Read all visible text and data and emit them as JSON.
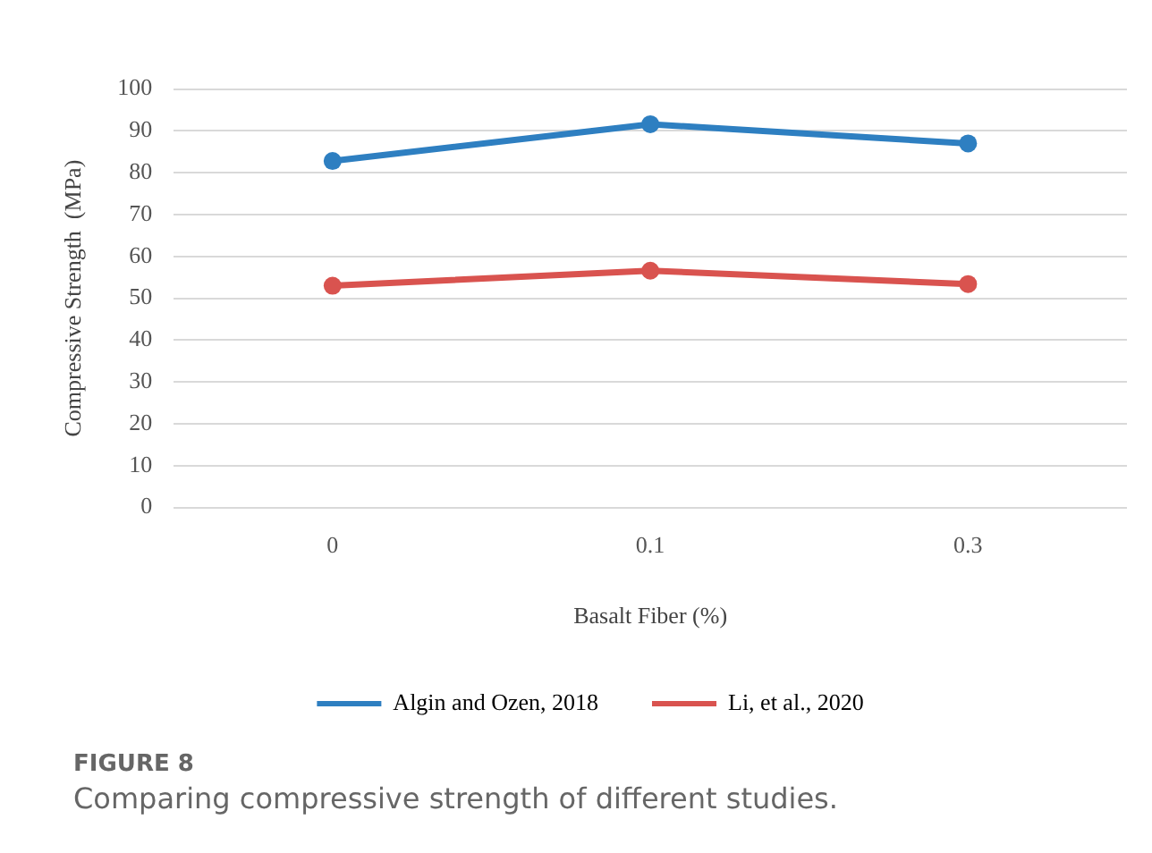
{
  "chart_data": {
    "type": "line",
    "xlabel": "Basalt Fiber (%)",
    "ylabel": "Compressive Strength  (MPa)",
    "categories": [
      "0",
      "0.1",
      "0.3"
    ],
    "series": [
      {
        "name": "Algin and Ozen, 2018",
        "color": "#2e7fc1",
        "values": [
          82.8,
          91.6,
          87.0
        ]
      },
      {
        "name": "Li, et al., 2020",
        "color": "#d9534f",
        "values": [
          53.0,
          56.6,
          53.4
        ]
      }
    ],
    "ylim": [
      0,
      100
    ],
    "yticks": [
      0,
      10,
      20,
      30,
      40,
      50,
      60,
      70,
      80,
      90,
      100
    ],
    "grid": "y",
    "legend": "bottom",
    "marker": "circle",
    "line_style": "solid",
    "annotations": [
      "FIGURE 8",
      "Comparing compressive strength of different studies."
    ]
  }
}
